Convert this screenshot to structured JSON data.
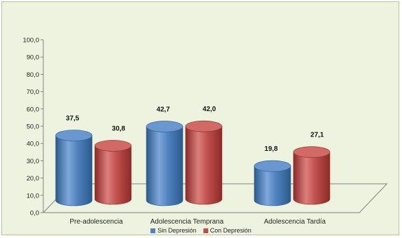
{
  "chart_data": {
    "type": "bar",
    "categories": [
      "Pre-adolescencia",
      "Adolescencia Temprana",
      "Adolescencia Tardía"
    ],
    "series": [
      {
        "name": "Sin Depresión",
        "values": [
          37.5,
          42.7,
          19.8
        ],
        "color": "#4f81bd"
      },
      {
        "name": "Con Depresión",
        "values": [
          30.8,
          42.0,
          27.1
        ],
        "color": "#c0504d"
      }
    ],
    "value_labels": {
      "Sin Depresión": [
        "37,5",
        "42,7",
        "19,8"
      ],
      "Con Depresión": [
        "30,8",
        "42,0",
        "27,1"
      ]
    },
    "ylim": [
      0,
      100
    ],
    "yticks": [
      "0,0",
      "10,0",
      "20,0",
      "30,0",
      "40,0",
      "50,0",
      "60,0",
      "70,0",
      "80,0",
      "90,0",
      "100,0"
    ],
    "bar_style": "3d-cylinder",
    "grid": false,
    "legend_position": "bottom",
    "background": "#eef3df"
  }
}
